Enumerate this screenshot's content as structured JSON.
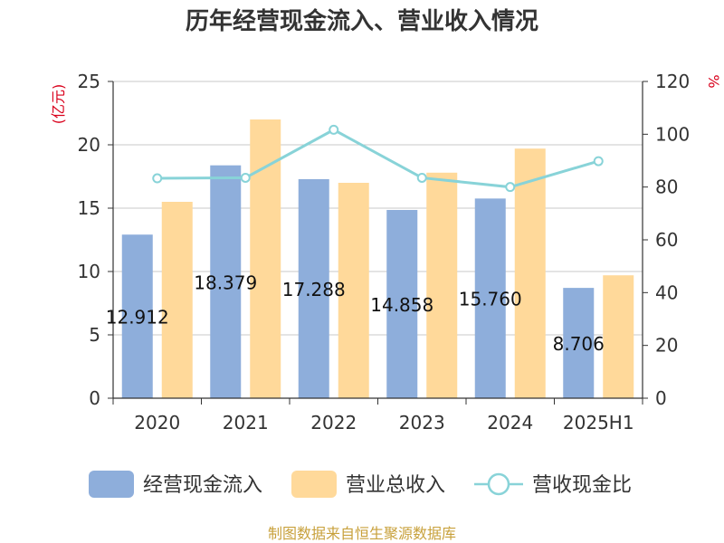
{
  "chart_data": {
    "type": "bar",
    "title": "历年经营现金流入、营业收入情况",
    "categories": [
      "2020",
      "2021",
      "2022",
      "2023",
      "2024",
      "2025H1"
    ],
    "y_left": {
      "unit": "(亿元)",
      "ylim": [
        0,
        25
      ],
      "ticks": [
        0,
        5,
        10,
        15,
        20,
        25
      ]
    },
    "y_right": {
      "unit": "%",
      "ylim": [
        0,
        120
      ],
      "ticks": [
        0,
        20,
        40,
        60,
        80,
        100,
        120
      ]
    },
    "grid": true,
    "legend_position": "bottom",
    "series": [
      {
        "name": "经营现金流入",
        "type": "bar",
        "axis": "left",
        "color": "#8eaedb",
        "values": [
          12.912,
          18.379,
          17.288,
          14.858,
          15.76,
          8.706
        ],
        "labels": [
          "12.912",
          "18.379",
          "17.288",
          "14.858",
          "15.760",
          "8.706"
        ]
      },
      {
        "name": "营业总收入",
        "type": "bar",
        "axis": "left",
        "color": "#ffd99a",
        "values": [
          15.5,
          22.0,
          17.0,
          17.8,
          19.7,
          9.7
        ]
      },
      {
        "name": "营收现金比",
        "type": "line",
        "axis": "right",
        "color": "#88d3d8",
        "values": [
          83.3,
          83.5,
          101.7,
          83.5,
          80.0,
          89.8
        ]
      }
    ]
  },
  "source": "制图数据来自恒生聚源数据库"
}
